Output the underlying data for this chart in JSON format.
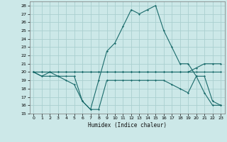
{
  "xlabel": "Humidex (Indice chaleur)",
  "bg_color": "#cce8e8",
  "grid_color": "#aacfcf",
  "line_color": "#1a6b6b",
  "xlim": [
    -0.5,
    23.5
  ],
  "ylim": [
    15,
    28.5
  ],
  "yticks": [
    15,
    16,
    17,
    18,
    19,
    20,
    21,
    22,
    23,
    24,
    25,
    26,
    27,
    28
  ],
  "xticks": [
    0,
    1,
    2,
    3,
    4,
    5,
    6,
    7,
    8,
    9,
    10,
    11,
    12,
    13,
    14,
    15,
    16,
    17,
    18,
    19,
    20,
    21,
    22,
    23
  ],
  "xtick_labels": [
    "0",
    "1",
    "2",
    "3",
    "4",
    "5",
    "6",
    "7",
    "8",
    "9",
    "10",
    "11",
    "12",
    "13",
    "14",
    "15",
    "16",
    "17",
    "18",
    "19",
    "20",
    "21",
    "22",
    "23"
  ],
  "series": [
    [
      20,
      19.5,
      19.5,
      19.5,
      19.5,
      19.5,
      16.5,
      15.5,
      19.0,
      22.5,
      23.5,
      25.5,
      27.5,
      27.0,
      27.5,
      28.0,
      25.0,
      23.0,
      21.0,
      21.0,
      19.5,
      17.5,
      16.0,
      16.0
    ],
    [
      20,
      19.5,
      20.0,
      19.5,
      19.0,
      18.5,
      16.5,
      15.5,
      15.5,
      19.0,
      19.0,
      19.0,
      19.0,
      19.0,
      19.0,
      19.0,
      19.0,
      18.5,
      18.0,
      17.5,
      19.5,
      19.5,
      16.5,
      16.0
    ],
    [
      20,
      20.0,
      20.0,
      20.0,
      20.0,
      20.0,
      20.0,
      20.0,
      20.0,
      20.0,
      20.0,
      20.0,
      20.0,
      20.0,
      20.0,
      20.0,
      20.0,
      20.0,
      20.0,
      20.0,
      20.0,
      20.0,
      20.0,
      20.0
    ],
    [
      20,
      20.0,
      20.0,
      20.0,
      20.0,
      20.0,
      20.0,
      20.0,
      20.0,
      20.0,
      20.0,
      20.0,
      20.0,
      20.0,
      20.0,
      20.0,
      20.0,
      20.0,
      20.0,
      20.0,
      20.5,
      21.0,
      21.0,
      21.0
    ]
  ]
}
